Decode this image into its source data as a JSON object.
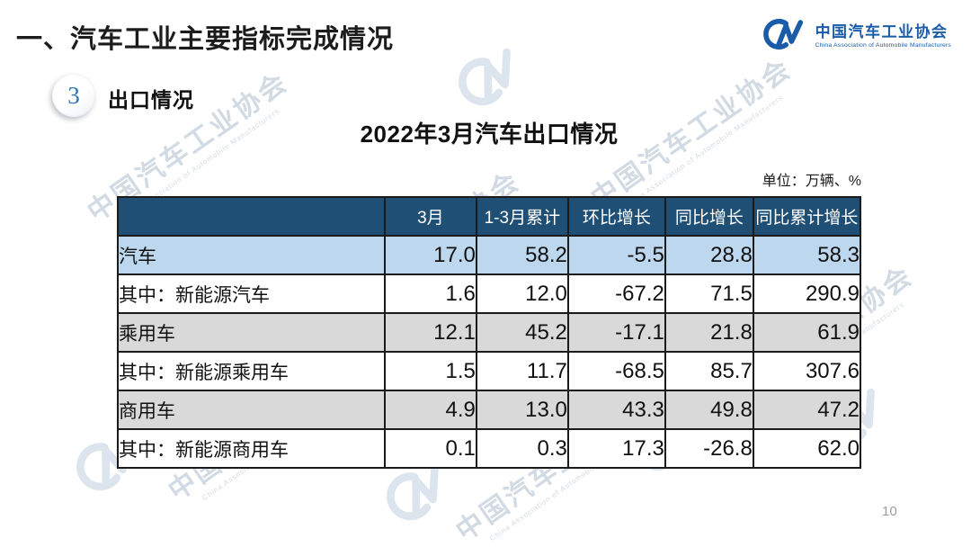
{
  "slide": {
    "section_title": "一、汽车工业主要指标完成情况",
    "badge_number": "3",
    "badge_label": "出口情况",
    "table_title": "2022年3月汽车出口情况",
    "unit_label": "单位：万辆、%",
    "page_number": "10"
  },
  "logo": {
    "name": "中国汽车工业协会",
    "subtitle": "China Association of Automobile Manufacturers"
  },
  "watermark": {
    "text": "中国汽车工业协会",
    "subtext": "China Association of Automobile Manufacturers"
  },
  "colors": {
    "header_bg": "#1f4f75",
    "row_blue": "#bdd7ee",
    "row_gray": "#d9d9d9",
    "row_white": "#ffffff",
    "brand_blue": "#1a5ca8",
    "badge_number_blue": "#2e74b5"
  },
  "chart_data": {
    "type": "table",
    "title": "2022年3月汽车出口情况",
    "unit": "万辆、%",
    "columns": [
      "",
      "3月",
      "1-3月累计",
      "环比增长",
      "同比增长",
      "同比累计增长"
    ],
    "rows": [
      {
        "label": "汽车",
        "indent": 0,
        "bg": "#bdd7ee",
        "values": [
          "17.0",
          "58.2",
          "-5.5",
          "28.8",
          "58.3"
        ]
      },
      {
        "label": "其中：新能源汽车",
        "indent": 1,
        "bg": "#ffffff",
        "values": [
          "1.6",
          "12.0",
          "-67.2",
          "71.5",
          "290.9"
        ]
      },
      {
        "label": "乘用车",
        "indent": 1,
        "bg": "#d9d9d9",
        "values": [
          "12.1",
          "45.2",
          "-17.1",
          "21.8",
          "61.9"
        ]
      },
      {
        "label": "其中：新能源乘用车",
        "indent": 2,
        "bg": "#ffffff",
        "values": [
          "1.5",
          "11.7",
          "-68.5",
          "85.7",
          "307.6"
        ]
      },
      {
        "label": "商用车",
        "indent": 1,
        "bg": "#d9d9d9",
        "values": [
          "4.9",
          "13.0",
          "43.3",
          "49.8",
          "47.2"
        ]
      },
      {
        "label": "其中：新能源商用车",
        "indent": 2,
        "bg": "#ffffff",
        "values": [
          "0.1",
          "0.3",
          "17.3",
          "-26.8",
          "62.0"
        ]
      }
    ]
  }
}
